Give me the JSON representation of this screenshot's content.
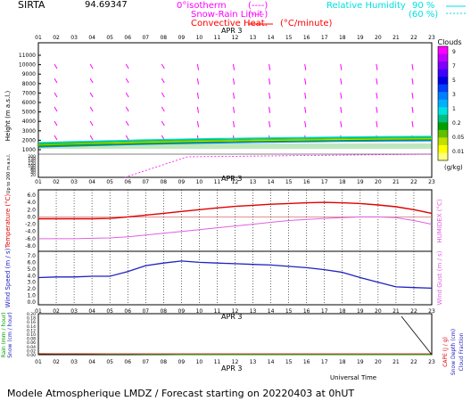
{
  "header": {
    "station": "SIRTA",
    "coords": "94.69347",
    "legend_isotherm": "0°isotherm",
    "legend_isotherm_dash": "(----)",
    "legend_snow": "Snow-Rain Limit",
    "legend_snow_dash": "(----)",
    "legend_convective": "Convective Heat.",
    "legend_convective_unit": "(°C/minute)",
    "legend_rh": "Relative Humidity",
    "rh_90": "90 %",
    "rh_60": "(60 %)",
    "date_label": "APR   3"
  },
  "hours": [
    "01",
    "02",
    "03",
    "04",
    "05",
    "06",
    "07",
    "08",
    "09",
    "10",
    "11",
    "12",
    "13",
    "14",
    "15",
    "16",
    "17",
    "18",
    "19",
    "20",
    "21",
    "22",
    "23"
  ],
  "clouds_colorbar": {
    "title": "Clouds",
    "unit": "(g/kg)",
    "labels": [
      "9",
      "7",
      "5",
      "3",
      "1",
      "0.2",
      "0.05",
      "0.01"
    ],
    "colors": [
      "#ff00ff",
      "#c000ff",
      "#8000ff",
      "#4000ff",
      "#0000e0",
      "#0040ff",
      "#0080ff",
      "#00b0ff",
      "#00e0e0",
      "#00c080",
      "#00a000",
      "#60c000",
      "#c0e000",
      "#ffff00",
      "#ffff80"
    ]
  },
  "panel1": {
    "ylabel": "Height  (m a.s.l.)",
    "ylabel2": "Up to 200 m a.s.l.",
    "yticks": [
      "11000",
      "10000",
      "9000",
      "8000",
      "7000",
      "6000",
      "5000",
      "4000",
      "3000",
      "2000",
      "1000"
    ],
    "low_ticks": [
      "200",
      "150",
      "140",
      "120",
      "100",
      "80",
      "60",
      "40",
      "20"
    ]
  },
  "panel2": {
    "ylabel": "Temperature (°C)",
    "ylabel_right": "HUMIDEX (°C)",
    "yticks": [
      "6.0",
      "4.0",
      "2.0",
      "0.0",
      "-2.0",
      "-4.0",
      "-6.0",
      "-8.0"
    ]
  },
  "panel3": {
    "ylabel": "Wind Speed (m / s)",
    "ylabel_right": "Wind Gust (m / s)",
    "yticks": [
      "7.0",
      "6.0",
      "5.0",
      "4.0",
      "3.0",
      "2.0",
      "1.0",
      "0.0"
    ]
  },
  "panel4": {
    "ylabel_rain": "Rain (mm / hour)",
    "ylabel_snow": "Snow (cm / hour)",
    "ylabel_cape": "CAPE (J / g)",
    "ylabel_snowdepth": "Snow Depth (cm)",
    "ylabel_cloudfrac": "Cloud Fraction",
    "yticks": [
      "0.20",
      "0.18",
      "0.16",
      "0.14",
      "0.12",
      "0.10",
      "0.08",
      "0.06",
      "0.04",
      "0.02",
      "0.00"
    ]
  },
  "xlabel": "Universal Time",
  "footer": "Modele Atmospherique LMDZ / Forecast starting on 20220403 at 0hUT",
  "chart_data": {
    "type": "line",
    "x": [
      1,
      2,
      3,
      4,
      5,
      6,
      7,
      8,
      9,
      10,
      11,
      12,
      13,
      14,
      15,
      16,
      17,
      18,
      19,
      20,
      21,
      22,
      23
    ],
    "series": [
      {
        "name": "Temperature",
        "color": "#e00000",
        "values": [
          -0.5,
          -0.5,
          -0.5,
          -0.5,
          -0.4,
          0.0,
          0.5,
          1.0,
          1.5,
          2.0,
          2.5,
          2.9,
          3.2,
          3.5,
          3.7,
          3.9,
          4.0,
          3.9,
          3.7,
          3.3,
          2.8,
          2.0,
          1.0
        ]
      },
      {
        "name": "Humidex",
        "color": "#e060e0",
        "values": [
          -6.0,
          -6.0,
          -6.0,
          -5.9,
          -5.8,
          -5.5,
          -5.0,
          -4.5,
          -4.0,
          -3.5,
          -3.0,
          -2.5,
          -2.0,
          -1.5,
          -1.0,
          -0.7,
          -0.4,
          -0.2,
          0.0,
          0.0,
          -0.2,
          -1.0,
          -2.0
        ]
      },
      {
        "name": "Wind Speed",
        "color": "#2020c0",
        "values": [
          3.7,
          3.8,
          3.8,
          3.9,
          3.9,
          4.6,
          5.5,
          5.9,
          6.2,
          6.0,
          5.9,
          5.8,
          5.7,
          5.6,
          5.4,
          5.2,
          4.9,
          4.5,
          3.7,
          3.0,
          2.3,
          2.2,
          2.1
        ]
      },
      {
        "name": "Rain",
        "color": "#00a000",
        "values": [
          0.005,
          0.004,
          0.004,
          0.003,
          0.002,
          0.002,
          0.001,
          0.001,
          0,
          0,
          0,
          0,
          0,
          0,
          0,
          0,
          0,
          0,
          0,
          0,
          0,
          0,
          0
        ]
      }
    ],
    "ylim_temperature": [
      -8,
      6
    ],
    "ylim_wind": [
      0,
      7
    ],
    "ylim_rain": [
      0,
      0.2
    ]
  }
}
